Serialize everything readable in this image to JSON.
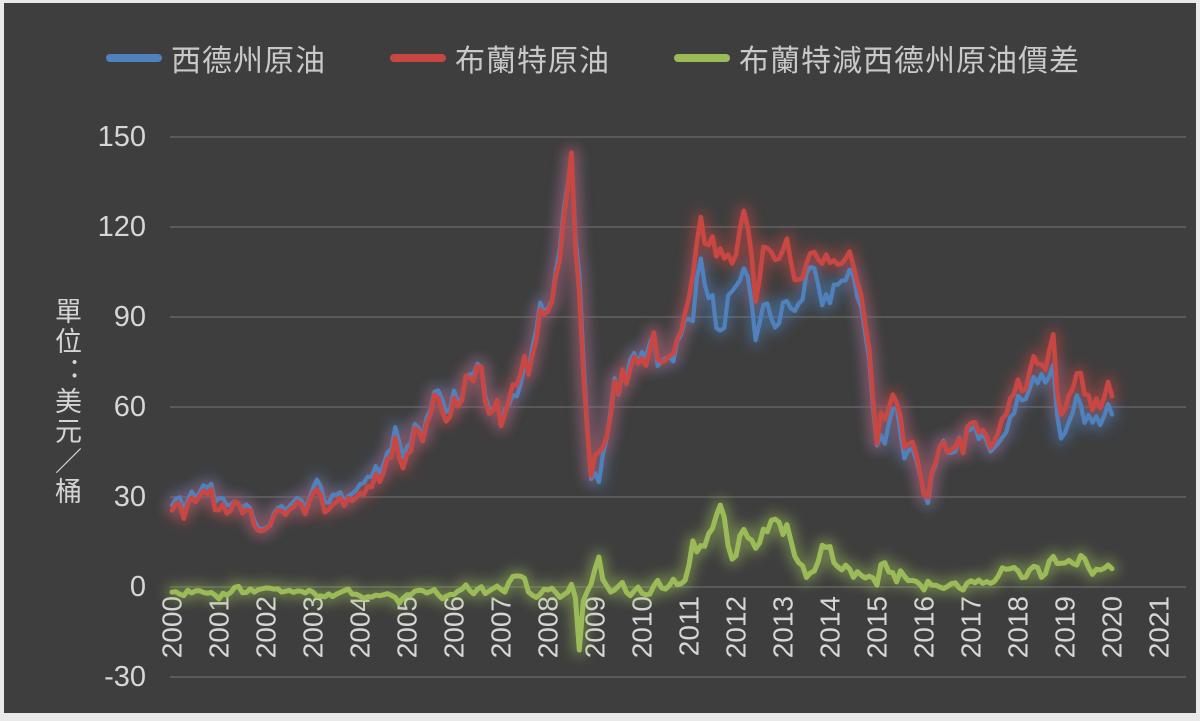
{
  "frame": {
    "background": "#3e3e3e",
    "border_color": "#d2d2d2"
  },
  "legend": {
    "items": [
      {
        "label": "西德州原油",
        "color": "#4f81bd"
      },
      {
        "label": "布蘭特原油",
        "color": "#c84743"
      },
      {
        "label": "布蘭特減西德州原油價差",
        "color": "#9bbb59"
      }
    ]
  },
  "y_axis": {
    "title": "單位：美元／桶",
    "ticks": [
      150,
      120,
      90,
      60,
      30,
      0,
      -30
    ],
    "min": -30,
    "max": 150,
    "tick_color": "#d6d6d6",
    "gridline_color": "#a3a3a3"
  },
  "x_axis": {
    "ticks": [
      "2000",
      "2001",
      "2002",
      "2003",
      "2004",
      "2005",
      "2006",
      "2007",
      "2008",
      "2009",
      "2010",
      "2011",
      "2012",
      "2013",
      "2014",
      "2015",
      "2016",
      "2017",
      "2018",
      "2019",
      "2020",
      "2021"
    ],
    "tick_color": "#d6d6d6"
  },
  "chart_data": {
    "type": "line",
    "x_unit": "monthly from Jan 2000 to Jan 2020",
    "x_start": 2000.0,
    "x_step": 0.0833,
    "xlim": [
      2000,
      2021
    ],
    "ylim": [
      -30,
      150
    ],
    "grid": true,
    "legend_position": "top",
    "ylabel": "單位：美元／桶",
    "series": [
      {
        "name": "西德州原油",
        "color": "#4f81bd",
        "values": [
          27.2,
          29.4,
          29.9,
          25.7,
          28.8,
          31.8,
          29.7,
          31.3,
          33.9,
          33.1,
          34.4,
          28.4,
          29.6,
          29.6,
          27.2,
          27.4,
          28.6,
          27.6,
          26.5,
          27.5,
          26.2,
          22.2,
          19.7,
          19.3,
          19.7,
          20.7,
          24.4,
          26.3,
          27.0,
          25.5,
          26.9,
          28.4,
          29.7,
          28.9,
          26.3,
          29.4,
          33.0,
          35.8,
          33.5,
          28.2,
          28.1,
          30.7,
          30.8,
          31.6,
          28.3,
          30.3,
          31.1,
          32.2,
          34.3,
          34.7,
          36.8,
          36.7,
          40.3,
          38.0,
          40.8,
          44.9,
          46.0,
          53.3,
          48.5,
          43.3,
          46.8,
          48.0,
          54.3,
          53.0,
          49.8,
          56.4,
          59.0,
          65.0,
          65.5,
          62.4,
          58.3,
          59.4,
          65.5,
          61.6,
          62.9,
          69.7,
          70.9,
          70.9,
          74.4,
          73.1,
          63.9,
          59.1,
          59.4,
          62.0,
          54.5,
          59.3,
          60.6,
          64.0,
          63.5,
          67.5,
          74.1,
          72.4,
          79.9,
          85.8,
          94.8,
          91.7,
          93.0,
          95.4,
          105.5,
          112.6,
          125.4,
          134.0,
          143.9,
          116.7,
          104.1,
          76.6,
          54.0,
          36.0,
          38.0,
          35.0,
          44.0,
          49.8,
          59.0,
          69.6,
          64.1,
          71.0,
          69.4,
          75.7,
          78.0,
          74.5,
          78.3,
          76.4,
          81.2,
          84.4,
          73.7,
          75.3,
          76.3,
          76.6,
          75.2,
          81.9,
          84.2,
          89.2,
          89.2,
          88.6,
          102.9,
          109.5,
          100.9,
          96.3,
          97.3,
          86.3,
          85.5,
          86.4,
          97.2,
          98.6,
          100.3,
          102.2,
          106.2,
          103.3,
          94.7,
          82.3,
          87.9,
          94.1,
          94.5,
          89.5,
          86.5,
          87.9,
          94.8,
          95.3,
          92.9,
          92.0,
          94.5,
          95.8,
          104.7,
          106.6,
          106.3,
          100.5,
          93.9,
          97.6,
          94.6,
          100.8,
          100.8,
          102.1,
          102.2,
          105.8,
          103.6,
          96.5,
          93.2,
          84.4,
          75.8,
          59.3,
          47.2,
          50.6,
          47.8,
          54.5,
          59.3,
          59.8,
          51.2,
          42.9,
          45.5,
          46.2,
          42.4,
          37.2,
          31.7,
          28.0,
          37.6,
          41.0,
          46.7,
          48.8,
          44.7,
          44.7,
          45.2,
          49.8,
          45.7,
          52.0,
          52.5,
          53.5,
          49.3,
          51.1,
          48.5,
          45.2,
          46.6,
          48.0,
          49.8,
          51.6,
          56.6,
          57.9,
          63.7,
          62.2,
          62.7,
          66.3,
          70.0,
          67.9,
          71.0,
          68.1,
          70.2,
          74.0,
          57.0,
          49.5,
          51.4,
          55.0,
          58.2,
          63.9,
          60.8,
          54.7,
          57.4,
          54.8,
          56.9,
          54.0,
          57.0,
          61.0,
          57.5
        ]
      },
      {
        "name": "布蘭特原油",
        "color": "#c84743",
        "values": [
          25.5,
          27.8,
          27.5,
          22.8,
          27.7,
          29.8,
          28.4,
          30.1,
          32.1,
          31.0,
          32.6,
          25.7,
          25.6,
          27.5,
          24.5,
          25.6,
          28.5,
          27.8,
          24.6,
          25.7,
          25.6,
          20.5,
          18.8,
          18.7,
          19.4,
          20.3,
          23.7,
          25.7,
          25.3,
          24.1,
          25.8,
          26.6,
          28.4,
          27.5,
          24.3,
          28.3,
          31.3,
          32.7,
          30.5,
          24.9,
          25.8,
          27.5,
          28.4,
          29.8,
          27.1,
          29.6,
          28.7,
          29.8,
          31.3,
          30.9,
          33.6,
          33.3,
          37.6,
          35.1,
          38.2,
          42.7,
          43.2,
          49.8,
          43.1,
          39.6,
          44.2,
          45.4,
          52.9,
          51.9,
          48.6,
          54.4,
          57.5,
          64.1,
          62.9,
          58.5,
          55.2,
          56.9,
          63.0,
          60.2,
          62.1,
          70.4,
          69.8,
          68.6,
          73.7,
          73.2,
          61.7,
          57.8,
          58.9,
          62.3,
          53.7,
          57.6,
          62.1,
          67.5,
          67.2,
          71.1,
          77.0,
          70.8,
          77.2,
          82.3,
          92.4,
          91.0,
          92.0,
          95.0,
          103.7,
          109.1,
          122.8,
          132.3,
          144.8,
          113.2,
          98.1,
          71.9,
          52.5,
          37.0,
          44.0,
          45.0,
          46.5,
          50.2,
          57.3,
          68.6,
          64.4,
          72.5,
          67.7,
          72.8,
          76.7,
          74.5,
          76.2,
          73.8,
          78.8,
          84.8,
          75.9,
          75.0,
          75.6,
          77.1,
          77.8,
          82.7,
          85.3,
          91.4,
          96.5,
          104.0,
          114.6,
          123.3,
          114.5,
          114.0,
          116.8,
          110.2,
          112.8,
          109.6,
          110.8,
          107.9,
          110.7,
          119.3,
          125.4,
          119.8,
          110.3,
          95.2,
          102.6,
          113.4,
          112.9,
          111.7,
          109.1,
          109.5,
          112.3,
          116.1,
          108.5,
          102.3,
          102.6,
          102.9,
          107.9,
          111.3,
          111.6,
          109.1,
          107.8,
          110.8,
          108.1,
          108.9,
          107.5,
          107.8,
          109.5,
          111.8,
          106.8,
          101.6,
          97.1,
          87.4,
          79.4,
          62.3,
          47.8,
          58.1,
          55.9,
          59.5,
          64.1,
          61.5,
          56.6,
          46.5,
          47.6,
          48.4,
          44.3,
          38.0,
          30.7,
          29.9,
          38.2,
          41.6,
          46.7,
          48.3,
          44.9,
          45.8,
          46.6,
          49.5,
          44.7,
          53.3,
          54.6,
          54.9,
          51.6,
          52.3,
          50.3,
          46.4,
          48.5,
          51.7,
          56.2,
          57.5,
          62.7,
          64.4,
          69.1,
          65.3,
          66.0,
          72.1,
          76.9,
          74.4,
          74.2,
          72.5,
          78.9,
          84.2,
          64.8,
          57.4,
          59.4,
          63.9,
          66.1,
          71.2,
          71.3,
          64.2,
          63.9,
          59.0,
          62.8,
          59.7,
          63.2,
          68.3,
          63.6
        ]
      },
      {
        "name": "布蘭特減西德州原油價差",
        "color": "#9bbb59",
        "values": [
          -1.7,
          -1.6,
          -2.4,
          -2.9,
          -1.1,
          -2.0,
          -1.3,
          -1.2,
          -1.8,
          -2.1,
          -1.8,
          -2.7,
          -4.0,
          -2.1,
          -2.7,
          -1.8,
          -0.1,
          0.2,
          -1.9,
          -1.8,
          -0.6,
          -1.7,
          -0.9,
          -0.6,
          -0.3,
          -0.4,
          -0.7,
          -0.6,
          -1.7,
          -1.4,
          -1.1,
          -1.8,
          -1.3,
          -1.4,
          -2.0,
          -1.1,
          -1.7,
          -3.1,
          -3.0,
          -3.3,
          -2.3,
          -3.2,
          -2.4,
          -1.8,
          -1.2,
          -0.7,
          -2.4,
          -2.4,
          -3.0,
          -3.8,
          -3.2,
          -3.4,
          -2.7,
          -2.9,
          -2.6,
          -2.2,
          -2.8,
          -3.5,
          -5.4,
          -3.7,
          -2.6,
          -2.6,
          -1.4,
          -1.1,
          -1.2,
          -2.0,
          -1.5,
          -0.9,
          -2.6,
          -3.9,
          -3.1,
          -2.5,
          -2.5,
          -1.4,
          -0.8,
          0.7,
          -1.1,
          -2.3,
          -0.7,
          0.1,
          -2.2,
          -1.3,
          -0.5,
          0.3,
          -0.8,
          -1.7,
          1.5,
          3.5,
          3.7,
          3.6,
          2.9,
          -1.6,
          -2.7,
          -3.5,
          -2.4,
          -0.7,
          -1.0,
          -0.4,
          -1.8,
          -3.5,
          -2.6,
          -1.7,
          0.9,
          -3.5,
          -21.0,
          -4.7,
          -1.5,
          1.0,
          6.0,
          10.0,
          2.5,
          0.4,
          -1.7,
          -1.0,
          0.3,
          1.5,
          -1.7,
          -2.9,
          -1.3,
          0.0,
          -2.1,
          -2.6,
          -2.4,
          0.4,
          2.2,
          -0.3,
          -0.7,
          0.5,
          2.6,
          0.8,
          1.1,
          2.2,
          7.3,
          15.4,
          11.7,
          13.8,
          13.6,
          17.7,
          19.5,
          23.9,
          27.3,
          23.2,
          13.6,
          9.3,
          10.4,
          17.1,
          19.2,
          16.5,
          15.6,
          12.9,
          14.7,
          19.3,
          18.4,
          22.2,
          22.6,
          21.6,
          17.5,
          20.8,
          15.6,
          10.3,
          8.1,
          7.1,
          3.2,
          4.7,
          5.3,
          8.6,
          13.9,
          13.2,
          13.5,
          8.1,
          6.7,
          5.7,
          7.3,
          6.0,
          3.2,
          5.1,
          3.9,
          3.0,
          3.6,
          3.0,
          0.6,
          7.5,
          8.1,
          5.0,
          4.8,
          1.7,
          5.4,
          3.6,
          2.1,
          2.2,
          1.9,
          0.8,
          -1.0,
          1.9,
          0.6,
          0.6,
          0.0,
          -0.5,
          0.2,
          1.1,
          1.4,
          -0.3,
          -1.0,
          1.3,
          2.1,
          1.4,
          2.3,
          1.2,
          1.8,
          1.2,
          1.9,
          3.7,
          6.4,
          5.9,
          6.1,
          6.5,
          5.4,
          3.1,
          3.3,
          5.8,
          6.9,
          6.5,
          3.2,
          4.4,
          8.7,
          10.2,
          7.8,
          7.9,
          8.0,
          8.9,
          7.9,
          7.3,
          10.5,
          9.5,
          6.5,
          4.2,
          5.9,
          5.7,
          6.2,
          7.3,
          6.1
        ]
      }
    ]
  }
}
